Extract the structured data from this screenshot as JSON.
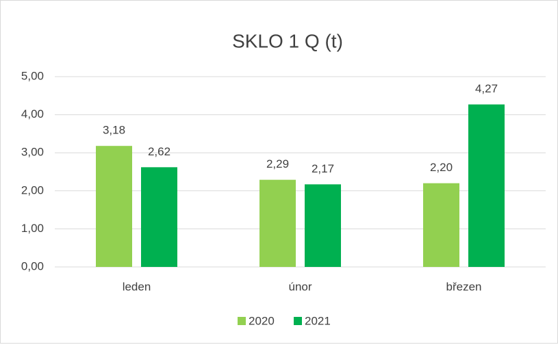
{
  "chart_data": {
    "type": "bar",
    "title": "SKLO 1 Q (t)",
    "categories": [
      "leden",
      "únor",
      "březen"
    ],
    "series": [
      {
        "name": "2020",
        "color": "#92d050",
        "values": [
          3.18,
          2.29,
          2.2
        ],
        "value_labels": [
          "3,18",
          "2,29",
          "2,20"
        ]
      },
      {
        "name": "2021",
        "color": "#00b050",
        "values": [
          2.62,
          2.17,
          4.27
        ],
        "value_labels": [
          "2,62",
          "2,17",
          "4,27"
        ]
      }
    ],
    "ylim": [
      0,
      5
    ],
    "yticks": [
      {
        "value": 0,
        "label": "0,00"
      },
      {
        "value": 1,
        "label": "1,00"
      },
      {
        "value": 2,
        "label": "2,00"
      },
      {
        "value": 3,
        "label": "3,00"
      },
      {
        "value": 4,
        "label": "4,00"
      },
      {
        "value": 5,
        "label": "5,00"
      }
    ],
    "grid": true,
    "legend": "bottom"
  }
}
